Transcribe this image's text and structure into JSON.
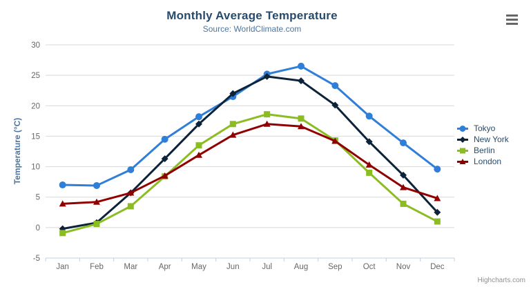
{
  "chart_data": {
    "type": "line",
    "title": "Monthly Average Temperature",
    "subtitle": "Source: WorldClimate.com",
    "xlabel": "",
    "ylabel": "Temperature (°C)",
    "ylim": [
      -5,
      30
    ],
    "yticks": [
      -5,
      0,
      5,
      10,
      15,
      20,
      25,
      30
    ],
    "grid": true,
    "legend_position": "right",
    "categories": [
      "Jan",
      "Feb",
      "Mar",
      "Apr",
      "May",
      "Jun",
      "Jul",
      "Aug",
      "Sep",
      "Oct",
      "Nov",
      "Dec"
    ],
    "series": [
      {
        "name": "Tokyo",
        "color": "#2f7ed8",
        "marker": "circle",
        "values": [
          7.0,
          6.9,
          9.5,
          14.5,
          18.2,
          21.5,
          25.2,
          26.5,
          23.3,
          18.3,
          13.9,
          9.6
        ]
      },
      {
        "name": "New York",
        "color": "#0d233a",
        "marker": "diamond",
        "values": [
          -0.2,
          0.8,
          5.7,
          11.3,
          17.0,
          22.0,
          24.8,
          24.1,
          20.1,
          14.1,
          8.6,
          2.5
        ]
      },
      {
        "name": "Berlin",
        "color": "#8bbc21",
        "marker": "square",
        "values": [
          -0.9,
          0.6,
          3.5,
          8.4,
          13.5,
          17.0,
          18.6,
          17.9,
          14.3,
          9.0,
          3.9,
          1.0
        ]
      },
      {
        "name": "London",
        "color": "#910000",
        "marker": "triangle",
        "values": [
          3.9,
          4.2,
          5.7,
          8.5,
          11.9,
          15.2,
          17.0,
          16.6,
          14.2,
          10.3,
          6.6,
          4.8
        ]
      }
    ],
    "credit": "Highcharts.com"
  },
  "colors": {
    "title": "#274b6d",
    "subtitle": "#4d759e",
    "axis_title": "#4d759e",
    "axis_label": "#666666",
    "grid": "#d8d8d8",
    "axis_line": "#c0d0e0",
    "legend_text": "#274b6d",
    "credit": "#909090",
    "export_icon": "#666666"
  },
  "export_menu": {
    "icon": "hamburger-menu-icon"
  }
}
